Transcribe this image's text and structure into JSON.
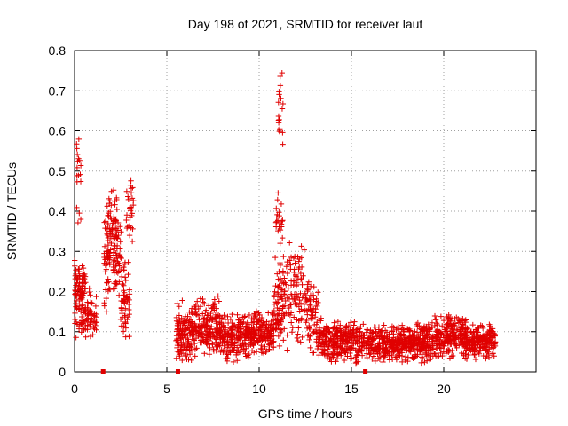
{
  "chart_data": {
    "type": "scatter",
    "title": "Day 198 of 2021, SRMTID for receiver laut",
    "xlabel": "GPS time / hours",
    "ylabel": "SRMTID / TECUs",
    "xlim": [
      0,
      25
    ],
    "ylim": [
      0,
      0.8
    ],
    "x_ticks": [
      0,
      5,
      10,
      15,
      20
    ],
    "y_ticks": [
      0,
      0.1,
      0.2,
      0.3,
      0.4,
      0.5,
      0.6,
      0.7,
      0.8
    ],
    "x_tick_labels": [
      "0",
      "5",
      "10",
      "15",
      "20"
    ],
    "y_tick_labels": [
      "0",
      "0.1",
      "0.2",
      "0.3",
      "0.4",
      "0.5",
      "0.6",
      "0.7",
      "0.8"
    ],
    "grid": true,
    "marker": "+",
    "color": "#e00000",
    "zero_flags_x": [
      1.55,
      5.6,
      15.75
    ],
    "series": [
      {
        "name": "SRMTID",
        "clusters": [
          {
            "x": [
              0.0,
              0.6
            ],
            "y": [
              0.08,
              0.3
            ],
            "n": 110
          },
          {
            "x": [
              0.1,
              0.35
            ],
            "y": [
              0.35,
              0.62
            ],
            "n": 18
          },
          {
            "x": [
              0.6,
              1.2
            ],
            "y": [
              0.07,
              0.22
            ],
            "n": 50
          },
          {
            "x": [
              1.6,
              1.95
            ],
            "y": [
              0.12,
              0.43
            ],
            "n": 40
          },
          {
            "x": [
              1.8,
              2.3
            ],
            "y": [
              0.25,
              0.46
            ],
            "n": 65
          },
          {
            "x": [
              2.1,
              2.55
            ],
            "y": [
              0.15,
              0.4
            ],
            "n": 50
          },
          {
            "x": [
              2.5,
              3.0
            ],
            "y": [
              0.06,
              0.3
            ],
            "n": 55
          },
          {
            "x": [
              2.8,
              3.2
            ],
            "y": [
              0.3,
              0.5
            ],
            "n": 28
          },
          {
            "x": [
              5.5,
              6.5
            ],
            "y": [
              0.02,
              0.18
            ],
            "n": 140
          },
          {
            "x": [
              6.5,
              8.0
            ],
            "y": [
              0.03,
              0.19
            ],
            "n": 200
          },
          {
            "x": [
              8.0,
              9.7
            ],
            "y": [
              0.02,
              0.15
            ],
            "n": 220
          },
          {
            "x": [
              9.7,
              10.8
            ],
            "y": [
              0.04,
              0.16
            ],
            "n": 140
          },
          {
            "x": [
              10.8,
              11.3
            ],
            "y": [
              0.05,
              0.3
            ],
            "n": 70
          },
          {
            "x": [
              10.9,
              11.3
            ],
            "y": [
              0.3,
              0.45
            ],
            "n": 22
          },
          {
            "x": [
              11.0,
              11.3
            ],
            "y": [
              0.52,
              0.76
            ],
            "n": 18
          },
          {
            "x": [
              11.3,
              12.5
            ],
            "y": [
              0.05,
              0.34
            ],
            "n": 110
          },
          {
            "x": [
              12.5,
              13.2
            ],
            "y": [
              0.03,
              0.24
            ],
            "n": 70
          },
          {
            "x": [
              13.2,
              15.0
            ],
            "y": [
              0.02,
              0.14
            ],
            "n": 230
          },
          {
            "x": [
              15.0,
              15.7
            ],
            "y": [
              0.02,
              0.13
            ],
            "n": 80
          },
          {
            "x": [
              15.8,
              17.5
            ],
            "y": [
              0.02,
              0.12
            ],
            "n": 210
          },
          {
            "x": [
              17.5,
              19.5
            ],
            "y": [
              0.02,
              0.13
            ],
            "n": 260
          },
          {
            "x": [
              19.5,
              21.2
            ],
            "y": [
              0.03,
              0.15
            ],
            "n": 230
          },
          {
            "x": [
              21.2,
              22.8
            ],
            "y": [
              0.03,
              0.12
            ],
            "n": 200
          }
        ]
      }
    ]
  }
}
